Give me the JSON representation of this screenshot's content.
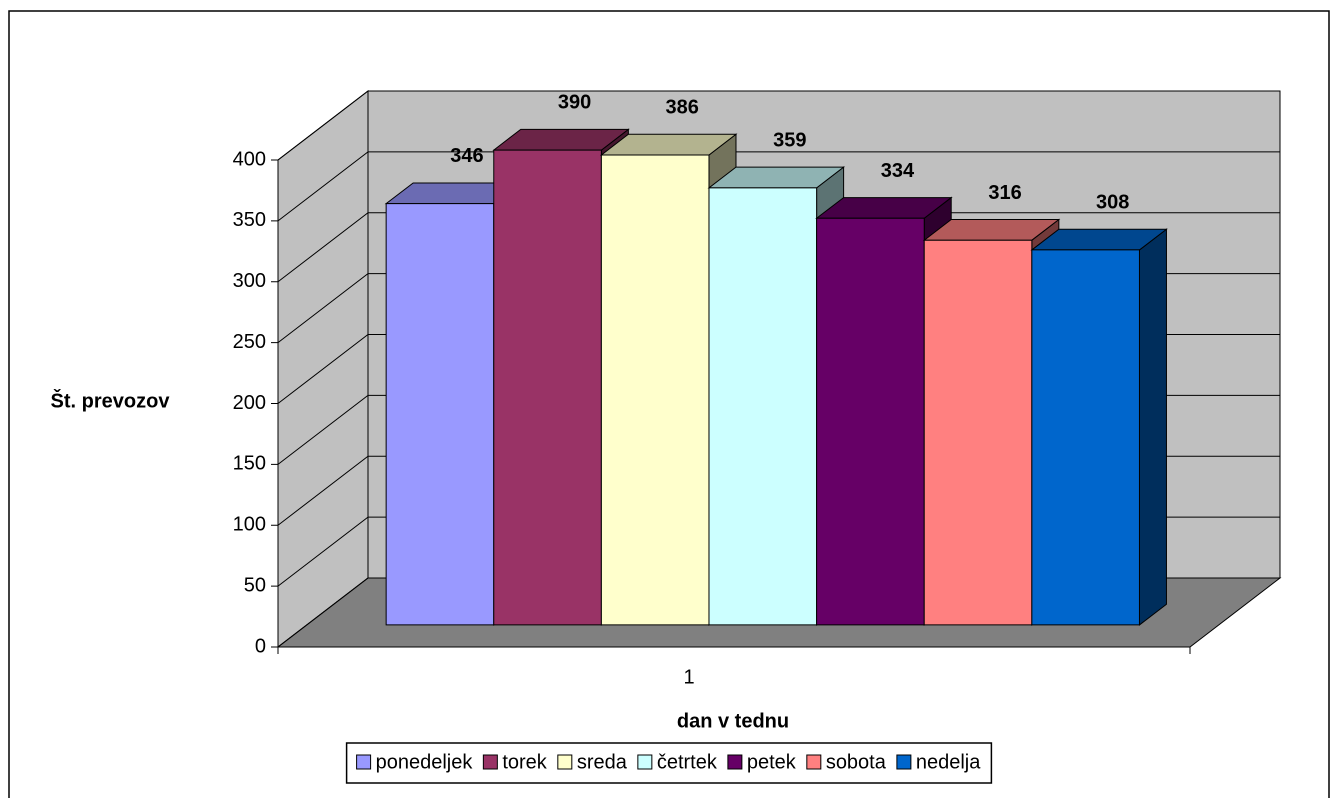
{
  "chart_data": {
    "type": "bar3d",
    "x_label": "dan v tednu",
    "y_label": "Št. prevozov",
    "categories": [
      "1"
    ],
    "series": [
      {
        "name": "ponedeljek",
        "color": "#9999FF",
        "values": [
          346
        ]
      },
      {
        "name": "torek",
        "color": "#993366",
        "values": [
          390
        ]
      },
      {
        "name": "sreda",
        "color": "#FFFFCC",
        "values": [
          386
        ]
      },
      {
        "name": "četrtek",
        "color": "#CCFFFF",
        "values": [
          359
        ]
      },
      {
        "name": "petek",
        "color": "#660066",
        "values": [
          334
        ]
      },
      {
        "name": "sobota",
        "color": "#FF8080",
        "values": [
          316
        ]
      },
      {
        "name": "nedelja",
        "color": "#0066CC",
        "values": [
          308
        ]
      }
    ],
    "ylim": [
      0,
      400
    ],
    "yticks": [
      0,
      50,
      100,
      150,
      200,
      250,
      300,
      350,
      400
    ],
    "grid": true,
    "legend": "bottom"
  }
}
